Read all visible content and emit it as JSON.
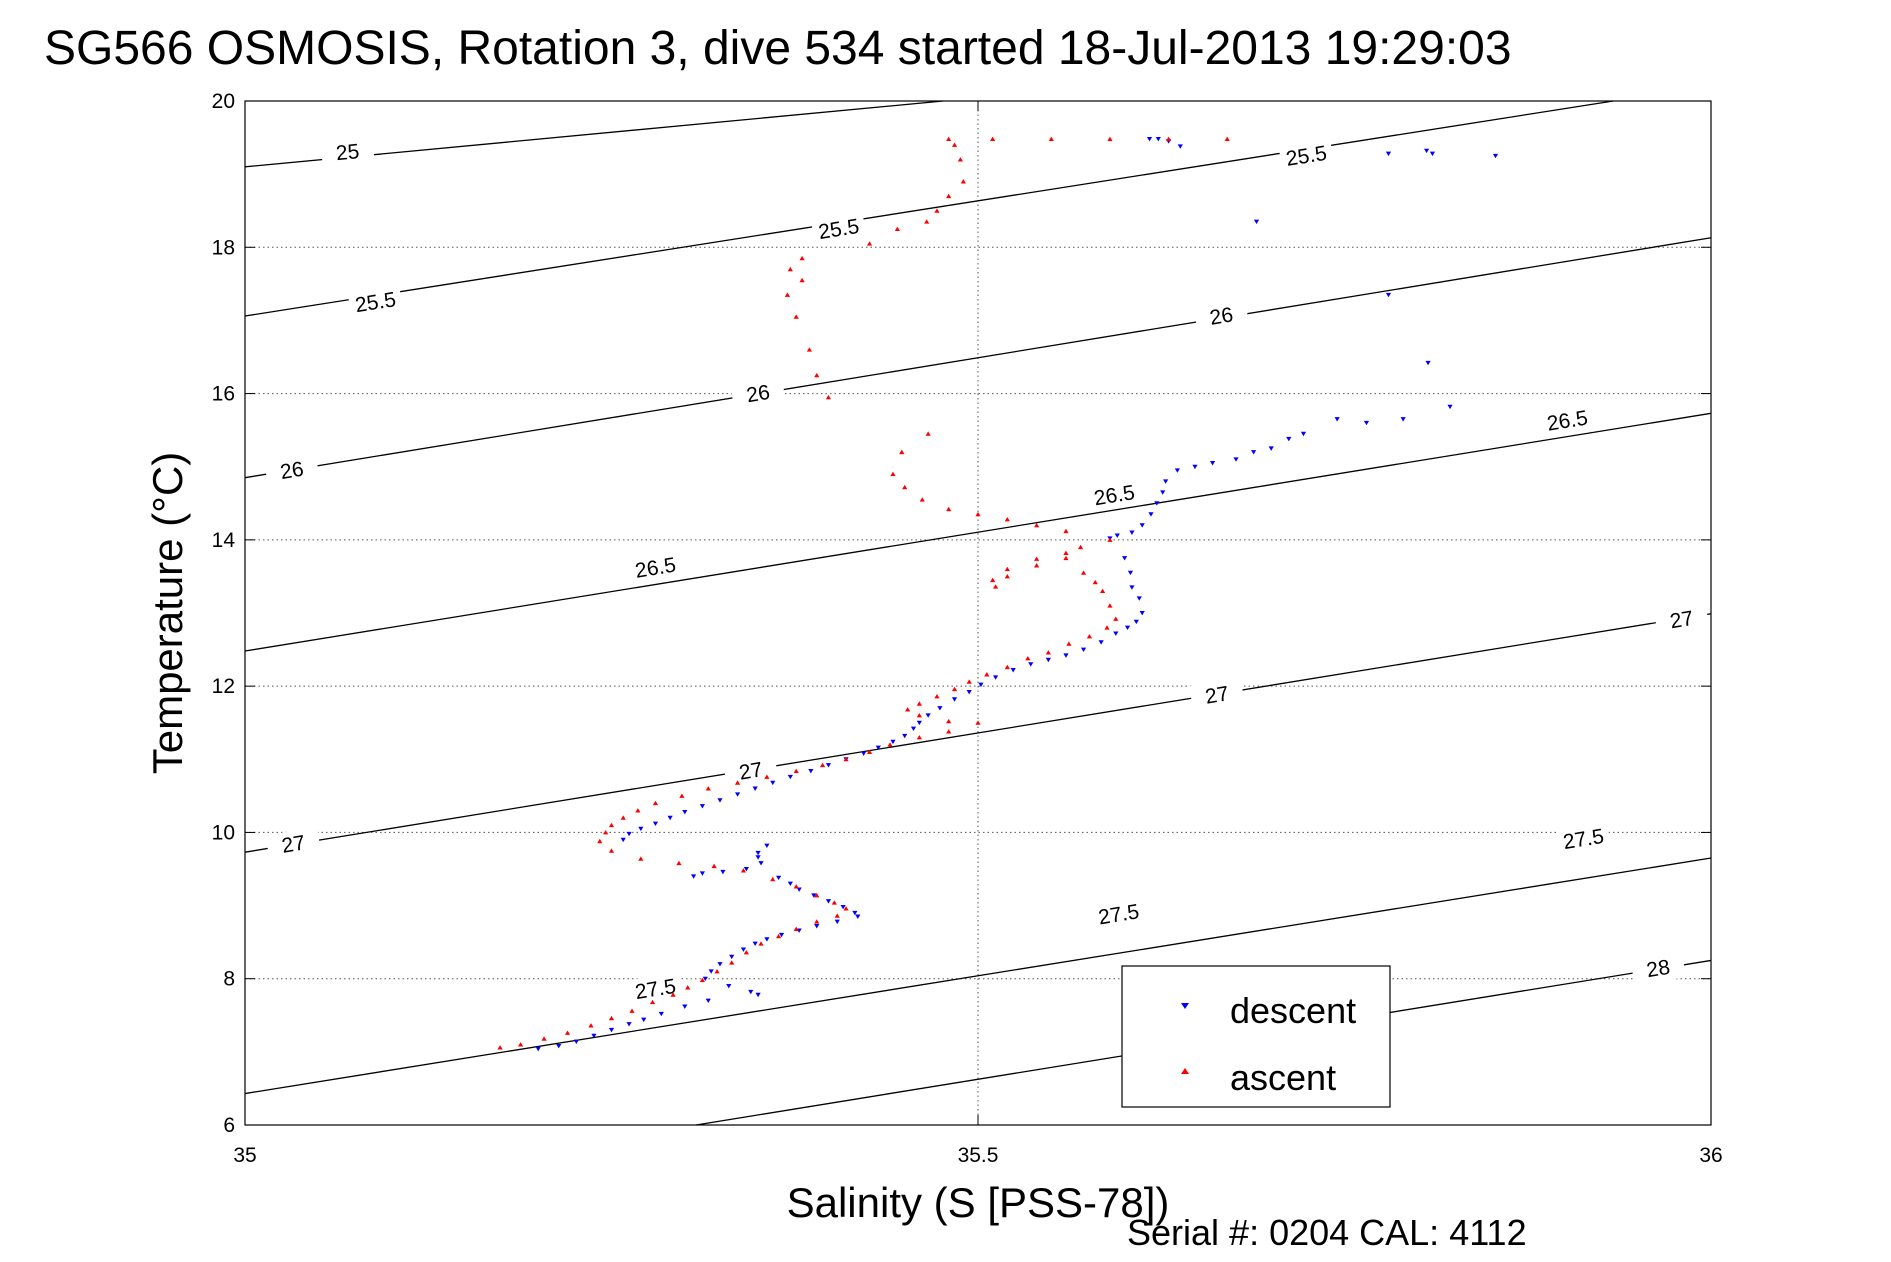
{
  "chart_data": {
    "type": "scatter",
    "title": "SG566 OSMOSIS, Rotation 3, dive 534 started 18-Jul-2013 19:29:03",
    "xlabel": "Salinity (S [PSS-78])",
    "ylabel": "Temperature (°C)",
    "footer": "Serial #: 0204  CAL: 4112",
    "xlim": [
      35,
      36
    ],
    "ylim": [
      6,
      20
    ],
    "x_ticks": [
      "35",
      "35.5",
      "36"
    ],
    "y_ticks": [
      "6",
      "8",
      "10",
      "12",
      "14",
      "16",
      "18",
      "20"
    ],
    "grid": "dotted",
    "legend_position": "bottom-right",
    "contour_levels": [
      25,
      25.5,
      26,
      26.5,
      27,
      27.5,
      28
    ],
    "contour_labels": [
      {
        "text": "25",
        "s": 35.07,
        "t": 19.3
      },
      {
        "text": "25.5",
        "s": 35.089,
        "t": 17.25
      },
      {
        "text": "25.5",
        "s": 35.405,
        "t": 18.25
      },
      {
        "text": "25.5",
        "s": 35.724,
        "t": 19.25
      },
      {
        "text": "26",
        "s": 35.032,
        "t": 14.95
      },
      {
        "text": "26",
        "s": 35.35,
        "t": 16.0
      },
      {
        "text": "26",
        "s": 35.666,
        "t": 17.06
      },
      {
        "text": "26.5",
        "s": 35.28,
        "t": 13.62
      },
      {
        "text": "26.5",
        "s": 35.593,
        "t": 14.61
      },
      {
        "text": "26.5",
        "s": 35.902,
        "t": 15.63
      },
      {
        "text": "27",
        "s": 35.033,
        "t": 9.84
      },
      {
        "text": "27",
        "s": 35.345,
        "t": 10.84
      },
      {
        "text": "27",
        "s": 35.663,
        "t": 11.88
      },
      {
        "text": "27",
        "s": 35.98,
        "t": 12.91
      },
      {
        "text": "27.5",
        "s": 35.28,
        "t": 7.86
      },
      {
        "text": "27.5",
        "s": 35.596,
        "t": 8.88
      },
      {
        "text": "27.5",
        "s": 35.913,
        "t": 9.91
      },
      {
        "text": "28",
        "s": 35.964,
        "t": 8.14
      }
    ],
    "series": [
      {
        "name": "descent",
        "color": "#0000ff",
        "marker": "triangle-down",
        "points": [
          [
            35.617,
            19.48
          ],
          [
            35.623,
            19.48
          ],
          [
            35.63,
            19.45
          ],
          [
            35.638,
            19.38
          ],
          [
            35.78,
            19.28
          ],
          [
            35.806,
            19.32
          ],
          [
            35.81,
            19.28
          ],
          [
            35.853,
            19.25
          ],
          [
            35.69,
            18.35
          ],
          [
            35.78,
            17.35
          ],
          [
            35.807,
            16.42
          ],
          [
            35.822,
            15.82
          ],
          [
            35.79,
            15.65
          ],
          [
            35.765,
            15.6
          ],
          [
            35.745,
            15.65
          ],
          [
            35.722,
            15.45
          ],
          [
            35.712,
            15.38
          ],
          [
            35.7,
            15.25
          ],
          [
            35.688,
            15.2
          ],
          [
            35.676,
            15.1
          ],
          [
            35.66,
            15.05
          ],
          [
            35.648,
            15.0
          ],
          [
            35.636,
            14.95
          ],
          [
            35.628,
            14.8
          ],
          [
            35.626,
            14.65
          ],
          [
            35.622,
            14.5
          ],
          [
            35.618,
            14.35
          ],
          [
            35.612,
            14.2
          ],
          [
            35.605,
            14.1
          ],
          [
            35.595,
            14.06
          ],
          [
            35.59,
            14.02
          ],
          [
            35.6,
            13.75
          ],
          [
            35.604,
            13.55
          ],
          [
            35.605,
            13.35
          ],
          [
            35.61,
            13.2
          ],
          [
            35.612,
            13.0
          ],
          [
            35.608,
            12.88
          ],
          [
            35.602,
            12.8
          ],
          [
            35.594,
            12.72
          ],
          [
            35.584,
            12.6
          ],
          [
            35.572,
            12.5
          ],
          [
            35.56,
            12.42
          ],
          [
            35.548,
            12.36
          ],
          [
            35.536,
            12.3
          ],
          [
            35.524,
            12.22
          ],
          [
            35.512,
            12.12
          ],
          [
            35.502,
            12.02
          ],
          [
            35.494,
            11.92
          ],
          [
            35.484,
            11.82
          ],
          [
            35.474,
            11.7
          ],
          [
            35.466,
            11.6
          ],
          [
            35.46,
            11.5
          ],
          [
            35.456,
            11.42
          ],
          [
            35.45,
            11.32
          ],
          [
            35.442,
            11.24
          ],
          [
            35.432,
            11.16
          ],
          [
            35.422,
            11.08
          ],
          [
            35.41,
            11.0
          ],
          [
            35.398,
            10.92
          ],
          [
            35.386,
            10.84
          ],
          [
            35.372,
            10.76
          ],
          [
            35.36,
            10.68
          ],
          [
            35.348,
            10.6
          ],
          [
            35.336,
            10.52
          ],
          [
            35.324,
            10.44
          ],
          [
            35.312,
            10.36
          ],
          [
            35.3,
            10.28
          ],
          [
            35.29,
            10.2
          ],
          [
            35.28,
            10.12
          ],
          [
            35.27,
            10.05
          ],
          [
            35.262,
            9.98
          ],
          [
            35.258,
            9.9
          ],
          [
            35.356,
            9.82
          ],
          [
            35.35,
            9.72
          ],
          [
            35.35,
            9.66
          ],
          [
            35.352,
            9.58
          ],
          [
            35.342,
            9.5
          ],
          [
            35.326,
            9.46
          ],
          [
            35.312,
            9.44
          ],
          [
            35.306,
            9.4
          ],
          [
            35.364,
            9.38
          ],
          [
            35.372,
            9.3
          ],
          [
            35.378,
            9.22
          ],
          [
            35.388,
            9.14
          ],
          [
            35.398,
            9.06
          ],
          [
            35.408,
            8.98
          ],
          [
            35.416,
            8.9
          ],
          [
            35.418,
            8.85
          ],
          [
            35.404,
            8.78
          ],
          [
            35.39,
            8.72
          ],
          [
            35.378,
            8.66
          ],
          [
            35.366,
            8.6
          ],
          [
            35.356,
            8.54
          ],
          [
            35.348,
            8.48
          ],
          [
            35.34,
            8.4
          ],
          [
            35.332,
            8.3
          ],
          [
            35.324,
            8.2
          ],
          [
            35.318,
            8.1
          ],
          [
            35.314,
            8.0
          ],
          [
            35.33,
            7.9
          ],
          [
            35.345,
            7.82
          ],
          [
            35.35,
            7.78
          ],
          [
            35.316,
            7.7
          ],
          [
            35.3,
            7.62
          ],
          [
            35.284,
            7.52
          ],
          [
            35.272,
            7.44
          ],
          [
            35.262,
            7.38
          ],
          [
            35.25,
            7.3
          ],
          [
            35.238,
            7.22
          ],
          [
            35.226,
            7.14
          ],
          [
            35.214,
            7.08
          ],
          [
            35.2,
            7.04
          ]
        ]
      },
      {
        "name": "ascent",
        "color": "#ff0000",
        "marker": "triangle-up",
        "points": [
          [
            35.48,
            19.48
          ],
          [
            35.51,
            19.48
          ],
          [
            35.55,
            19.48
          ],
          [
            35.59,
            19.48
          ],
          [
            35.63,
            19.48
          ],
          [
            35.67,
            19.48
          ],
          [
            35.484,
            19.4
          ],
          [
            35.488,
            19.2
          ],
          [
            35.49,
            18.9
          ],
          [
            35.48,
            18.7
          ],
          [
            35.472,
            18.5
          ],
          [
            35.465,
            18.35
          ],
          [
            35.445,
            18.25
          ],
          [
            35.426,
            18.05
          ],
          [
            35.38,
            17.85
          ],
          [
            35.372,
            17.7
          ],
          [
            35.38,
            17.55
          ],
          [
            35.37,
            17.35
          ],
          [
            35.376,
            17.05
          ],
          [
            35.385,
            16.6
          ],
          [
            35.39,
            16.25
          ],
          [
            35.398,
            15.95
          ],
          [
            35.466,
            15.45
          ],
          [
            35.448,
            15.2
          ],
          [
            35.442,
            14.9
          ],
          [
            35.45,
            14.72
          ],
          [
            35.462,
            14.55
          ],
          [
            35.48,
            14.42
          ],
          [
            35.5,
            14.35
          ],
          [
            35.52,
            14.28
          ],
          [
            35.54,
            14.2
          ],
          [
            35.56,
            14.12
          ],
          [
            35.59,
            14.0
          ],
          [
            35.57,
            13.9
          ],
          [
            35.56,
            13.82
          ],
          [
            35.54,
            13.74
          ],
          [
            35.52,
            13.6
          ],
          [
            35.51,
            13.45
          ],
          [
            35.512,
            13.36
          ],
          [
            35.52,
            13.5
          ],
          [
            35.54,
            13.65
          ],
          [
            35.56,
            13.75
          ],
          [
            35.572,
            13.55
          ],
          [
            35.58,
            13.42
          ],
          [
            35.585,
            13.3
          ],
          [
            35.59,
            13.1
          ],
          [
            35.594,
            12.92
          ],
          [
            35.588,
            12.8
          ],
          [
            35.576,
            12.68
          ],
          [
            35.562,
            12.58
          ],
          [
            35.548,
            12.46
          ],
          [
            35.534,
            12.38
          ],
          [
            35.52,
            12.26
          ],
          [
            35.506,
            12.16
          ],
          [
            35.494,
            12.06
          ],
          [
            35.484,
            11.96
          ],
          [
            35.472,
            11.86
          ],
          [
            35.46,
            11.76
          ],
          [
            35.452,
            11.68
          ],
          [
            35.46,
            11.6
          ],
          [
            35.48,
            11.52
          ],
          [
            35.5,
            11.5
          ],
          [
            35.48,
            11.38
          ],
          [
            35.46,
            11.3
          ],
          [
            35.44,
            11.2
          ],
          [
            35.426,
            11.1
          ],
          [
            35.41,
            11.0
          ],
          [
            35.394,
            10.92
          ],
          [
            35.376,
            10.84
          ],
          [
            35.356,
            10.76
          ],
          [
            35.336,
            10.68
          ],
          [
            35.316,
            10.6
          ],
          [
            35.298,
            10.5
          ],
          [
            35.28,
            10.4
          ],
          [
            35.268,
            10.3
          ],
          [
            35.258,
            10.2
          ],
          [
            35.25,
            10.1
          ],
          [
            35.246,
            10.0
          ],
          [
            35.242,
            9.88
          ],
          [
            35.25,
            9.75
          ],
          [
            35.27,
            9.64
          ],
          [
            35.296,
            9.58
          ],
          [
            35.32,
            9.54
          ],
          [
            35.34,
            9.48
          ],
          [
            35.36,
            9.36
          ],
          [
            35.376,
            9.26
          ],
          [
            35.39,
            9.14
          ],
          [
            35.402,
            9.04
          ],
          [
            35.41,
            8.96
          ],
          [
            35.404,
            8.86
          ],
          [
            35.39,
            8.78
          ],
          [
            35.376,
            8.68
          ],
          [
            35.364,
            8.58
          ],
          [
            35.352,
            8.48
          ],
          [
            35.342,
            8.36
          ],
          [
            35.332,
            8.22
          ],
          [
            35.322,
            8.1
          ],
          [
            35.312,
            7.98
          ],
          [
            35.302,
            7.88
          ],
          [
            35.292,
            7.78
          ],
          [
            35.278,
            7.68
          ],
          [
            35.264,
            7.56
          ],
          [
            35.25,
            7.46
          ],
          [
            35.236,
            7.36
          ],
          [
            35.22,
            7.26
          ],
          [
            35.204,
            7.18
          ],
          [
            35.188,
            7.1
          ],
          [
            35.174,
            7.06
          ]
        ]
      }
    ]
  }
}
